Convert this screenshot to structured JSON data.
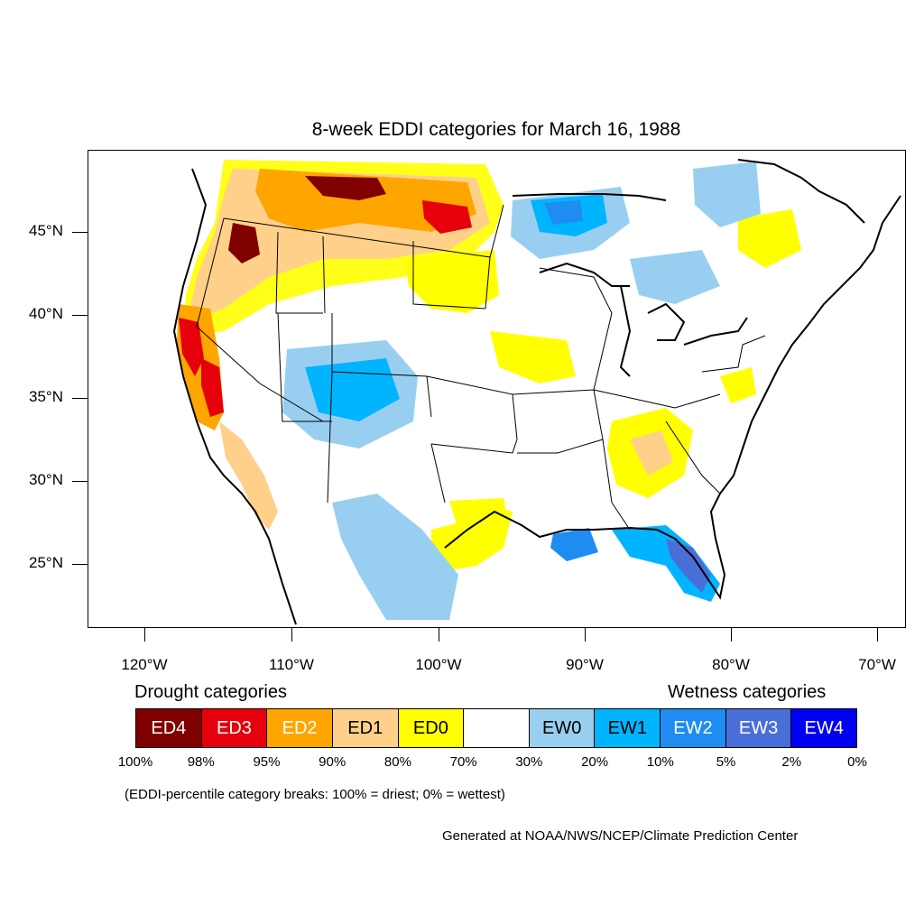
{
  "title": "8-week EDDI categories for March 16, 1988",
  "map": {
    "region": "Contiguous United States",
    "projection": "Lambert-like (North America)",
    "lat_labels": [
      "45°N",
      "40°N",
      "35°N",
      "30°N",
      "25°N"
    ],
    "lon_labels": [
      "120°W",
      "110°W",
      "100°W",
      "90°W",
      "80°W",
      "70°W"
    ],
    "features": [
      {
        "region": "Northern Rockies / Montana",
        "category": "ED2-ED4"
      },
      {
        "region": "Pacific Northwest / Oregon",
        "category": "ED2-ED4"
      },
      {
        "region": "California",
        "category": "ED1-ED3"
      },
      {
        "region": "Northern Plains",
        "category": "ED0"
      },
      {
        "region": "Iowa / Upper Midwest",
        "category": "ED0"
      },
      {
        "region": "Southeast (Georgia / Alabama)",
        "category": "ED0-ED1"
      },
      {
        "region": "Texas Gulf Coast",
        "category": "ED0-ED1"
      },
      {
        "region": "Colorado / Utah / New Mexico",
        "category": "EW0-EW1"
      },
      {
        "region": "Western Ontario / Lake Superior",
        "category": "EW0-EW2"
      },
      {
        "region": "Florida",
        "category": "EW1-EW3"
      },
      {
        "region": "Northern Mexico",
        "category": "EW0-EW1"
      }
    ]
  },
  "legend": {
    "drought_heading": "Drought categories",
    "wetness_heading": "Wetness categories",
    "categories": [
      {
        "label": "ED4",
        "color": "#800000",
        "text_color": "#ffffff"
      },
      {
        "label": "ED3",
        "color": "#e6000c",
        "text_color": "#ffffff"
      },
      {
        "label": "ED2",
        "color": "#ffa500",
        "text_color": "#ffffff"
      },
      {
        "label": "ED1",
        "color": "#ffd08a",
        "text_color": "#000000"
      },
      {
        "label": "ED0",
        "color": "#ffff00",
        "text_color": "#000000"
      },
      {
        "label": "",
        "color": "#ffffff",
        "text_color": "#000000"
      },
      {
        "label": "EW0",
        "color": "#98cff0",
        "text_color": "#000000"
      },
      {
        "label": "EW1",
        "color": "#00b4ff",
        "text_color": "#000000"
      },
      {
        "label": "EW2",
        "color": "#1e8cf0",
        "text_color": "#ffffff"
      },
      {
        "label": "EW3",
        "color": "#4a6ed8",
        "text_color": "#ffffff"
      },
      {
        "label": "EW4",
        "color": "#0000f5",
        "text_color": "#ffffff"
      }
    ],
    "breaks": [
      "100%",
      "98%",
      "95%",
      "90%",
      "80%",
      "70%",
      "30%",
      "20%",
      "10%",
      "5%",
      "2%",
      "0%"
    ]
  },
  "note": "(EDDI-percentile category breaks: 100% = driest; 0% = wettest)",
  "credit": "Generated at NOAA/NWS/NCEP/Climate Prediction Center"
}
